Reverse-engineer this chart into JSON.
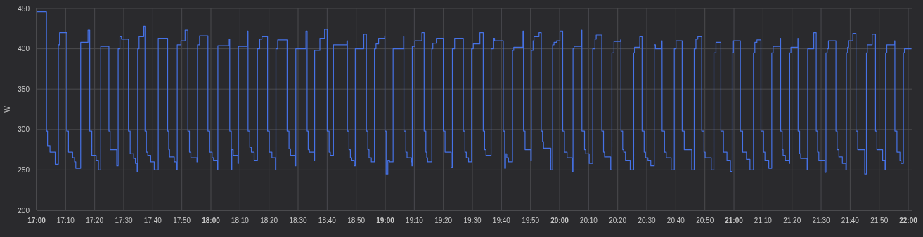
{
  "chart_data": {
    "type": "step",
    "ylabel": "W",
    "grid": true,
    "xlim": [
      17,
      22.02
    ],
    "ylim": [
      200,
      450
    ],
    "yticks": [
      200,
      250,
      300,
      350,
      400,
      450
    ],
    "xticks": [
      {
        "value": 17,
        "label": "17:00"
      },
      {
        "value": 17.1667,
        "label": "17:10"
      },
      {
        "value": 17.3333,
        "label": "17:20"
      },
      {
        "value": 17.5,
        "label": "17:30"
      },
      {
        "value": 17.6667,
        "label": "17:40"
      },
      {
        "value": 17.8333,
        "label": "17:50"
      },
      {
        "value": 18,
        "label": "18:00"
      },
      {
        "value": 18.1667,
        "label": "18:10"
      },
      {
        "value": 18.3333,
        "label": "18:20"
      },
      {
        "value": 18.5,
        "label": "18:30"
      },
      {
        "value": 18.6667,
        "label": "18:40"
      },
      {
        "value": 18.8333,
        "label": "18:50"
      },
      {
        "value": 19,
        "label": "19:00"
      },
      {
        "value": 19.1667,
        "label": "19:10"
      },
      {
        "value": 19.3333,
        "label": "19:20"
      },
      {
        "value": 19.5,
        "label": "19:30"
      },
      {
        "value": 19.6667,
        "label": "19:40"
      },
      {
        "value": 19.8333,
        "label": "19:50"
      },
      {
        "value": 20,
        "label": "20:00"
      },
      {
        "value": 20.1667,
        "label": "20:10"
      },
      {
        "value": 20.3333,
        "label": "20:20"
      },
      {
        "value": 20.5,
        "label": "20:30"
      },
      {
        "value": 20.6667,
        "label": "20:40"
      },
      {
        "value": 20.8333,
        "label": "20:50"
      },
      {
        "value": 21,
        "label": "21:00"
      },
      {
        "value": 21.1667,
        "label": "21:10"
      },
      {
        "value": 21.3333,
        "label": "21:20"
      },
      {
        "value": 21.5,
        "label": "21:30"
      },
      {
        "value": 21.6667,
        "label": "21:40"
      },
      {
        "value": 21.8333,
        "label": "21:50"
      },
      {
        "value": 22,
        "label": "22:00"
      }
    ],
    "series": [
      {
        "color": "#4672e6",
        "x": [
          17.0,
          17.057,
          17.063,
          17.077,
          17.107,
          17.125,
          17.132,
          17.173,
          17.183,
          17.207,
          17.218,
          17.225,
          17.253,
          17.295,
          17.305,
          17.317,
          17.342,
          17.355,
          17.368,
          17.415,
          17.422,
          17.46,
          17.468,
          17.478,
          17.487,
          17.527,
          17.537,
          17.557,
          17.567,
          17.577,
          17.58,
          17.588,
          17.615,
          17.622,
          17.63,
          17.638,
          17.655,
          17.675,
          17.698,
          17.752,
          17.758,
          17.763,
          17.79,
          17.802,
          17.807,
          17.828,
          17.852,
          17.868,
          17.877,
          17.885,
          17.92,
          17.923,
          17.935,
          17.983,
          17.993,
          18.007,
          18.015,
          18.037,
          18.04,
          18.105,
          18.108,
          18.117,
          18.12,
          18.128,
          18.155,
          18.158,
          18.208,
          18.213,
          18.223,
          18.232,
          18.248,
          18.267,
          18.28,
          18.293,
          18.325,
          18.335,
          18.35,
          18.37,
          18.373,
          18.383,
          18.437,
          18.448,
          18.457,
          18.482,
          18.487,
          18.545,
          18.552,
          18.558,
          18.565,
          18.592,
          18.595,
          18.625,
          18.652,
          18.667,
          18.678,
          18.685,
          18.703,
          18.78,
          18.783,
          18.792,
          18.8,
          18.808,
          18.822,
          18.828,
          18.877,
          18.892,
          18.9,
          18.907,
          18.92,
          18.938,
          18.947,
          18.962,
          18.997,
          18.998,
          19.005,
          19.015,
          19.025,
          19.045,
          19.105,
          19.107,
          19.118,
          19.125,
          19.15,
          19.153,
          19.155,
          19.17,
          19.21,
          19.223,
          19.233,
          19.238,
          19.243,
          19.267,
          19.273,
          19.293,
          19.333,
          19.343,
          19.378,
          19.385,
          19.398,
          19.448,
          19.457,
          19.465,
          19.478,
          19.495,
          19.505,
          19.543,
          19.562,
          19.57,
          19.578,
          19.607,
          19.622,
          19.627,
          19.677,
          19.685,
          19.69,
          19.697,
          19.707,
          19.73,
          19.737,
          19.79,
          19.793,
          19.802,
          19.835,
          19.838,
          19.848,
          19.853,
          19.882,
          19.895,
          19.902,
          19.908,
          19.95,
          19.96,
          19.968,
          19.983,
          20.002,
          20.018,
          20.028,
          20.043,
          20.072,
          20.077,
          20.083,
          20.127,
          20.128,
          20.143,
          20.15,
          20.17,
          20.19,
          20.203,
          20.21,
          20.242,
          20.252,
          20.258,
          20.293,
          20.3,
          20.312,
          20.35,
          20.352,
          20.362,
          20.368,
          20.378,
          20.405,
          20.425,
          20.43,
          20.46,
          20.473,
          20.485,
          20.493,
          20.507,
          20.523,
          20.543,
          20.55,
          20.587,
          20.588,
          20.602,
          20.612,
          20.64,
          20.658,
          20.668,
          20.703,
          20.715,
          20.758,
          20.772,
          20.782,
          20.793,
          20.815,
          20.828,
          20.835,
          20.87,
          20.885,
          20.897,
          20.925,
          20.94,
          20.96,
          20.98,
          20.99,
          20.997,
          21.037,
          21.05,
          21.072,
          21.092,
          21.112,
          21.12,
          21.132,
          21.155,
          21.17,
          21.178,
          21.2,
          21.217,
          21.225,
          21.265,
          21.268,
          21.277,
          21.282,
          21.295,
          21.317,
          21.32,
          21.327,
          21.367,
          21.368,
          21.377,
          21.383,
          21.42,
          21.423,
          21.458,
          21.472,
          21.48,
          21.487,
          21.522,
          21.528,
          21.535,
          21.542,
          21.585,
          21.592,
          21.602,
          21.622,
          21.642,
          21.645,
          21.652,
          21.658,
          21.682,
          21.7,
          21.71,
          21.75,
          21.76,
          21.765,
          21.793,
          21.812,
          21.82,
          21.853,
          21.867,
          21.87,
          21.877,
          21.922,
          21.923,
          21.935,
          21.952,
          21.958,
          21.972,
          21.978,
          22.018
        ],
        "values": [
          446,
          298,
          280,
          272,
          257,
          405,
          420,
          298,
          272,
          265,
          260,
          252,
          408,
          423,
          298,
          268,
          262,
          250,
          403,
          298,
          275,
          255,
          400,
          415,
          412,
          298,
          270,
          264,
          258,
          248,
          400,
          415,
          428,
          298,
          272,
          268,
          260,
          250,
          413,
          298,
          275,
          266,
          260,
          250,
          405,
          410,
          423,
          298,
          272,
          265,
          260,
          405,
          416,
          298,
          272,
          265,
          262,
          250,
          404,
          412,
          298,
          250,
          275,
          268,
          258,
          403,
          422,
          298,
          278,
          272,
          262,
          400,
          412,
          415,
          298,
          272,
          265,
          250,
          400,
          411,
          298,
          276,
          268,
          255,
          400,
          422,
          298,
          275,
          272,
          262,
          398,
          413,
          424,
          298,
          272,
          268,
          405,
          410,
          298,
          275,
          265,
          262,
          255,
          400,
          418,
          298,
          275,
          265,
          260,
          400,
          406,
          413,
          416,
          298,
          245,
          262,
          260,
          400,
          415,
          298,
          272,
          265,
          260,
          255,
          403,
          410,
          420,
          298,
          272,
          265,
          260,
          400,
          407,
          413,
          298,
          272,
          253,
          400,
          413,
          298,
          272,
          265,
          260,
          400,
          406,
          420,
          298,
          275,
          268,
          400,
          413,
          410,
          298,
          252,
          270,
          265,
          260,
          398,
          402,
          422,
          298,
          275,
          262,
          398,
          410,
          415,
          420,
          298,
          285,
          277,
          250,
          405,
          408,
          410,
          422,
          298,
          272,
          265,
          248,
          400,
          403,
          423,
          298,
          275,
          270,
          258,
          400,
          412,
          417,
          298,
          272,
          266,
          250,
          395,
          409,
          411,
          298,
          275,
          272,
          262,
          250,
          395,
          402,
          415,
          298,
          272,
          265,
          262,
          255,
          405,
          400,
          410,
          298,
          272,
          265,
          250,
          400,
          410,
          298,
          275,
          250,
          400,
          412,
          415,
          298,
          272,
          265,
          250,
          395,
          408,
          298,
          272,
          262,
          248,
          395,
          410,
          298,
          272,
          263,
          250,
          395,
          408,
          411,
          298,
          272,
          262,
          252,
          395,
          403,
          413,
          298,
          275,
          268,
          262,
          258,
          395,
          402,
          413,
          298,
          270,
          264,
          250,
          400,
          420,
          298,
          272,
          262,
          247,
          395,
          400,
          410,
          298,
          275,
          266,
          258,
          250,
          395,
          402,
          410,
          419,
          298,
          275,
          245,
          395,
          405,
          418,
          298,
          275,
          262,
          250,
          395,
          405,
          410,
          298,
          272,
          262,
          258,
          395,
          400,
          400
        ]
      }
    ]
  }
}
